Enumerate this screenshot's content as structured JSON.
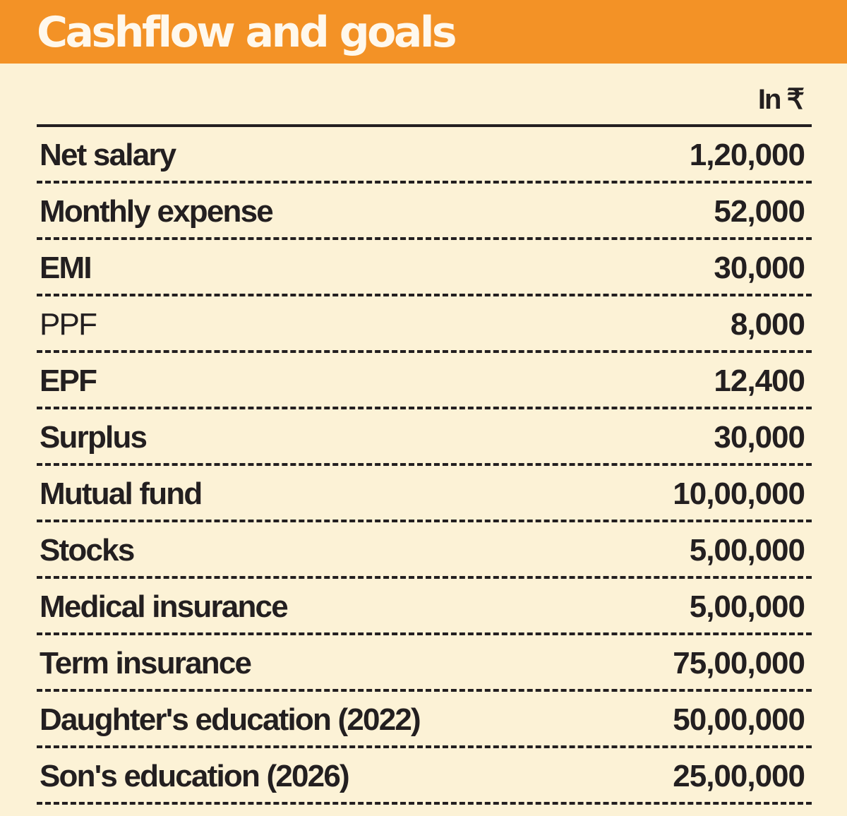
{
  "header": {
    "title": "Cashflow and goals",
    "accent_color": "#f39226",
    "background_color": "#fcf2d6"
  },
  "table": {
    "unit_note": "In ₹",
    "rows": [
      {
        "label": "Net salary",
        "value": "1,20,000"
      },
      {
        "label": "Monthly expense",
        "value": "52,000"
      },
      {
        "label": "EMI",
        "value": "30,000"
      },
      {
        "label": "PPF",
        "value": "8,000"
      },
      {
        "label": "EPF",
        "value": "12,400"
      },
      {
        "label": "Surplus",
        "value": "30,000"
      },
      {
        "label": "Mutual fund",
        "value": "10,00,000"
      },
      {
        "label": "Stocks",
        "value": "5,00,000"
      },
      {
        "label": "Medical insurance",
        "value": "5,00,000"
      },
      {
        "label": "Term insurance",
        "value": "75,00,000"
      },
      {
        "label": "Daughter's  education (2022)",
        "value": "50,00,000"
      },
      {
        "label": "Son's education (2026)",
        "value": "25,00,000"
      }
    ]
  }
}
